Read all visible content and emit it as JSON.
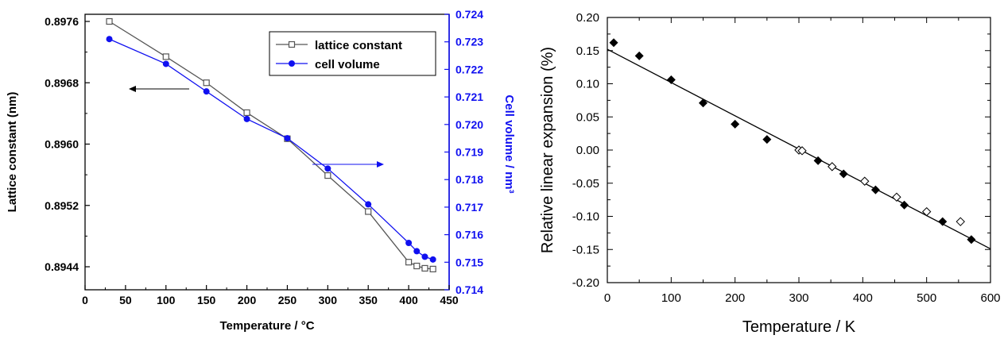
{
  "chart_data": [
    {
      "type": "line",
      "xlabel": "Temperature / °C",
      "ylabel": "Lattice constant (nm)",
      "y2label": "Cell volume / nm³",
      "xlim": [
        0,
        450
      ],
      "ylim": [
        0.894,
        0.898
      ],
      "y2lim": [
        0.714,
        0.724
      ],
      "xticks": [
        "0",
        "50",
        "100",
        "150",
        "200",
        "250",
        "300",
        "350",
        "400",
        "450"
      ],
      "yticks": [
        "0.8944",
        "0.8952",
        "0.8960",
        "0.8968",
        "0.8976"
      ],
      "y2ticks": [
        "0.714",
        "0.715",
        "0.716",
        "0.717",
        "0.718",
        "0.719",
        "0.720",
        "0.721",
        "0.722",
        "0.723",
        "0.724"
      ],
      "legend_position": "top-right",
      "colors": {
        "lattice": "#555555",
        "volume": "#1010f0",
        "right_axis": "#1010f0"
      },
      "series": [
        {
          "name": "lattice constant",
          "axis": "left",
          "marker": "open-square",
          "x": [
            30,
            100,
            150,
            200,
            250,
            300,
            350,
            400,
            410,
            420,
            430
          ],
          "y": [
            0.8976,
            0.89714,
            0.8968,
            0.89641,
            0.89607,
            0.89559,
            0.89512,
            0.89446,
            0.89441,
            0.89438,
            0.89437
          ]
        },
        {
          "name": "cell volume",
          "axis": "right",
          "marker": "filled-circle",
          "x": [
            30,
            100,
            150,
            200,
            250,
            300,
            350,
            400,
            410,
            420,
            430
          ],
          "y": [
            0.7231,
            0.7222,
            0.7212,
            0.7202,
            0.7195,
            0.7184,
            0.7171,
            0.7157,
            0.7154,
            0.7152,
            0.7151
          ]
        }
      ]
    },
    {
      "type": "scatter",
      "xlabel": "Temperature / K",
      "ylabel": "Relative linear expansion (%)",
      "xlim": [
        0,
        600
      ],
      "ylim": [
        -0.2,
        0.2
      ],
      "xticks": [
        "0",
        "100",
        "200",
        "300",
        "400",
        "500",
        "600"
      ],
      "yticks": [
        "0.20",
        "0.15",
        "0.10",
        "0.05",
        "0.00",
        "-0.05",
        "-0.10",
        "-0.15",
        "-0.20"
      ],
      "series": [
        {
          "marker": "filled-diamond",
          "x": [
            10,
            50,
            100,
            150,
            200,
            250,
            300,
            330,
            370,
            420,
            465,
            525,
            570
          ],
          "y": [
            0.162,
            0.142,
            0.106,
            0.071,
            0.039,
            0.016,
            0.0,
            -0.016,
            -0.036,
            -0.06,
            -0.083,
            -0.108,
            -0.135
          ]
        },
        {
          "marker": "open-diamond",
          "x": [
            300,
            305,
            352,
            403,
            453,
            500,
            553
          ],
          "y": [
            0.0,
            -0.001,
            -0.025,
            -0.047,
            -0.071,
            -0.093,
            -0.108
          ]
        }
      ],
      "fit_line": {
        "x": [
          0,
          600
        ],
        "y": [
          0.152,
          -0.149
        ]
      }
    }
  ]
}
